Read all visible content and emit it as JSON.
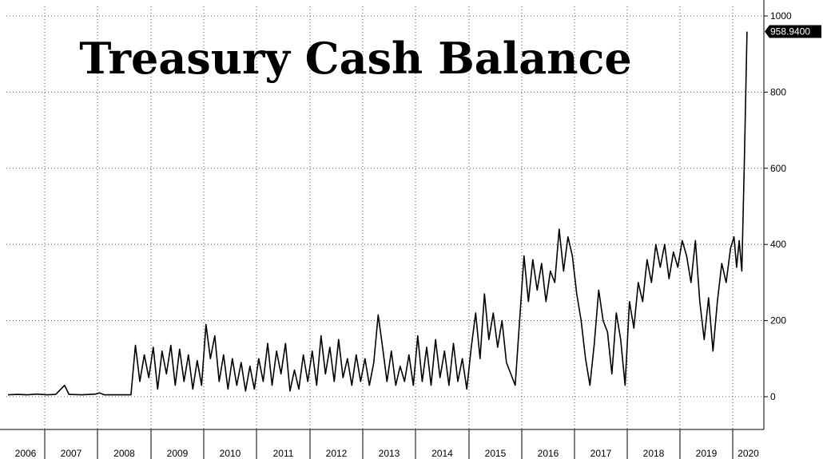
{
  "chart_data": {
    "type": "line",
    "title": "Treasury Cash Balance",
    "xlabel": "",
    "ylabel": "",
    "ylim": [
      -30,
      1000
    ],
    "yticks": [
      0,
      200,
      400,
      600,
      800,
      1000
    ],
    "x_tick_labels": [
      "2006",
      "2007",
      "2008",
      "2009",
      "2010",
      "2011",
      "2012",
      "2013",
      "2014",
      "2015",
      "2016",
      "2017",
      "2018",
      "2019",
      "2020"
    ],
    "grid": true,
    "last_value_label": "958.9400",
    "series": [
      {
        "color": "#000000",
        "points": [
          [
            "2006-01",
            5
          ],
          [
            "2006-04",
            6
          ],
          [
            "2006-07",
            5
          ],
          [
            "2006-10",
            7
          ],
          [
            "2007-01",
            5
          ],
          [
            "2007-03",
            6
          ],
          [
            "2007-05",
            30
          ],
          [
            "2007-06",
            6
          ],
          [
            "2007-09",
            5
          ],
          [
            "2007-12",
            7
          ],
          [
            "2008-01",
            10
          ],
          [
            "2008-02",
            5
          ],
          [
            "2008-05",
            5
          ],
          [
            "2008-08",
            5
          ],
          [
            "2008-09",
            135
          ],
          [
            "2008-10",
            40
          ],
          [
            "2008-11",
            110
          ],
          [
            "2008-12",
            50
          ],
          [
            "2009-01",
            130
          ],
          [
            "2009-02",
            20
          ],
          [
            "2009-03",
            120
          ],
          [
            "2009-04",
            60
          ],
          [
            "2009-05",
            135
          ],
          [
            "2009-06",
            30
          ],
          [
            "2009-07",
            125
          ],
          [
            "2009-08",
            40
          ],
          [
            "2009-09",
            110
          ],
          [
            "2009-10",
            20
          ],
          [
            "2009-11",
            95
          ],
          [
            "2009-12",
            30
          ],
          [
            "2010-01",
            190
          ],
          [
            "2010-02",
            100
          ],
          [
            "2010-03",
            160
          ],
          [
            "2010-04",
            40
          ],
          [
            "2010-05",
            110
          ],
          [
            "2010-06",
            20
          ],
          [
            "2010-07",
            100
          ],
          [
            "2010-08",
            30
          ],
          [
            "2010-09",
            90
          ],
          [
            "2010-10",
            15
          ],
          [
            "2010-11",
            80
          ],
          [
            "2010-12",
            20
          ],
          [
            "2011-01",
            100
          ],
          [
            "2011-02",
            40
          ],
          [
            "2011-03",
            140
          ],
          [
            "2011-04",
            30
          ],
          [
            "2011-05",
            120
          ],
          [
            "2011-06",
            60
          ],
          [
            "2011-07",
            140
          ],
          [
            "2011-08",
            15
          ],
          [
            "2011-09",
            70
          ],
          [
            "2011-10",
            20
          ],
          [
            "2011-11",
            110
          ],
          [
            "2011-12",
            40
          ],
          [
            "2012-01",
            120
          ],
          [
            "2012-02",
            30
          ],
          [
            "2012-03",
            160
          ],
          [
            "2012-04",
            60
          ],
          [
            "2012-05",
            130
          ],
          [
            "2012-06",
            40
          ],
          [
            "2012-07",
            150
          ],
          [
            "2012-08",
            50
          ],
          [
            "2012-09",
            100
          ],
          [
            "2012-10",
            30
          ],
          [
            "2012-11",
            110
          ],
          [
            "2012-12",
            40
          ],
          [
            "2013-01",
            100
          ],
          [
            "2013-02",
            30
          ],
          [
            "2013-03",
            90
          ],
          [
            "2013-04",
            215
          ],
          [
            "2013-05",
            130
          ],
          [
            "2013-06",
            40
          ],
          [
            "2013-07",
            120
          ],
          [
            "2013-08",
            30
          ],
          [
            "2013-09",
            80
          ],
          [
            "2013-10",
            40
          ],
          [
            "2013-11",
            110
          ],
          [
            "2013-12",
            30
          ],
          [
            "2014-01",
            160
          ],
          [
            "2014-02",
            40
          ],
          [
            "2014-03",
            130
          ],
          [
            "2014-04",
            30
          ],
          [
            "2014-05",
            150
          ],
          [
            "2014-06",
            50
          ],
          [
            "2014-07",
            120
          ],
          [
            "2014-08",
            30
          ],
          [
            "2014-09",
            140
          ],
          [
            "2014-10",
            40
          ],
          [
            "2014-11",
            100
          ],
          [
            "2014-12",
            20
          ],
          [
            "2015-01",
            130
          ],
          [
            "2015-02",
            220
          ],
          [
            "2015-03",
            100
          ],
          [
            "2015-04",
            270
          ],
          [
            "2015-05",
            150
          ],
          [
            "2015-06",
            220
          ],
          [
            "2015-07",
            130
          ],
          [
            "2015-08",
            200
          ],
          [
            "2015-09",
            90
          ],
          [
            "2015-10",
            60
          ],
          [
            "2015-11",
            30
          ],
          [
            "2015-12",
            200
          ],
          [
            "2016-01",
            370
          ],
          [
            "2016-02",
            250
          ],
          [
            "2016-03",
            360
          ],
          [
            "2016-04",
            280
          ],
          [
            "2016-05",
            350
          ],
          [
            "2016-06",
            250
          ],
          [
            "2016-07",
            330
          ],
          [
            "2016-08",
            300
          ],
          [
            "2016-09",
            440
          ],
          [
            "2016-10",
            330
          ],
          [
            "2016-11",
            420
          ],
          [
            "2016-12",
            370
          ],
          [
            "2017-01",
            270
          ],
          [
            "2017-02",
            200
          ],
          [
            "2017-03",
            100
          ],
          [
            "2017-04",
            30
          ],
          [
            "2017-05",
            140
          ],
          [
            "2017-06",
            280
          ],
          [
            "2017-07",
            200
          ],
          [
            "2017-08",
            170
          ],
          [
            "2017-09",
            60
          ],
          [
            "2017-10",
            220
          ],
          [
            "2017-11",
            150
          ],
          [
            "2017-12",
            30
          ],
          [
            "2018-01",
            250
          ],
          [
            "2018-02",
            180
          ],
          [
            "2018-03",
            300
          ],
          [
            "2018-04",
            250
          ],
          [
            "2018-05",
            360
          ],
          [
            "2018-06",
            300
          ],
          [
            "2018-07",
            400
          ],
          [
            "2018-08",
            340
          ],
          [
            "2018-09",
            400
          ],
          [
            "2018-10",
            310
          ],
          [
            "2018-11",
            380
          ],
          [
            "2018-12",
            340
          ],
          [
            "2019-01",
            410
          ],
          [
            "2019-02",
            370
          ],
          [
            "2019-03",
            300
          ],
          [
            "2019-04",
            410
          ],
          [
            "2019-05",
            250
          ],
          [
            "2019-06",
            150
          ],
          [
            "2019-07",
            260
          ],
          [
            "2019-08",
            120
          ],
          [
            "2019-09",
            250
          ],
          [
            "2019-10",
            350
          ],
          [
            "2019-11",
            300
          ],
          [
            "2019-12",
            390
          ],
          [
            "2020-01",
            420
          ],
          [
            "2020-02",
            340
          ],
          [
            "2020-03",
            410
          ],
          [
            "2020-04",
            330
          ],
          [
            "2020-05",
            620
          ],
          [
            "2020-06",
            959
          ]
        ]
      }
    ]
  }
}
